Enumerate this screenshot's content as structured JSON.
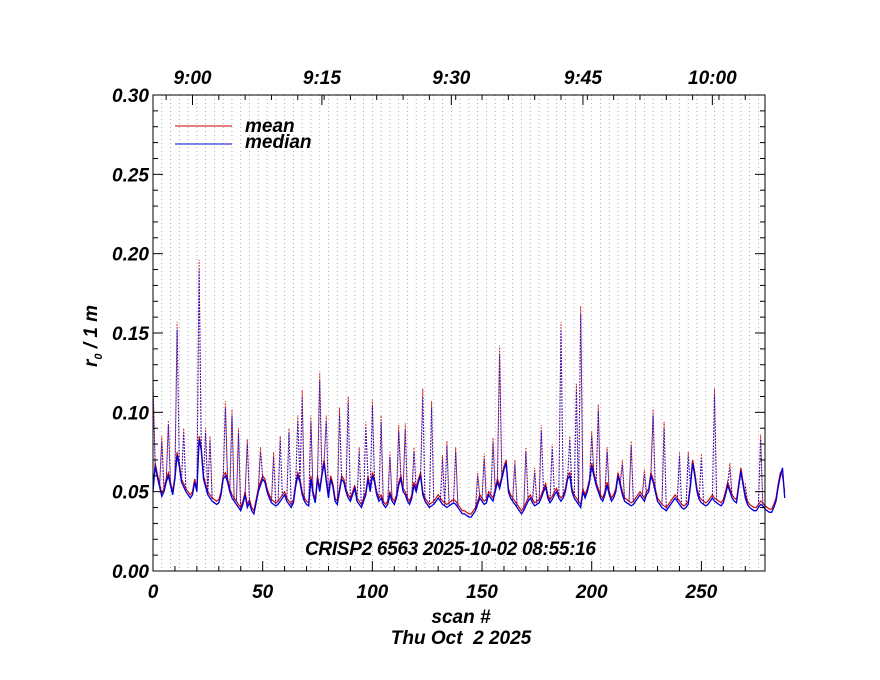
{
  "chart_data": {
    "type": "line",
    "title": "",
    "xlabel": "scan #",
    "date_label": "Thu Oct  2 2025",
    "ylabel": "r",
    "ylabel_sub": "0",
    "ylabel_unit": " / 1 m",
    "annotation": "CRISP2 6563 2025-10-02 08:55:16",
    "xlim": [
      0,
      279
    ],
    "ylim": [
      0.0,
      0.3
    ],
    "x_ticks": [
      0,
      50,
      100,
      150,
      200,
      250
    ],
    "x_tick_labels": [
      "0",
      "50",
      "100",
      "150",
      "200",
      "250"
    ],
    "y_ticks": [
      0.0,
      0.05,
      0.1,
      0.15,
      0.2,
      0.25,
      0.3
    ],
    "y_tick_labels": [
      "0.00",
      "0.05",
      "0.10",
      "0.15",
      "0.20",
      "0.25",
      "0.30"
    ],
    "top_axis": {
      "ticks": [
        18,
        77,
        136,
        196,
        255
      ],
      "labels": [
        "9:00",
        "9:15",
        "9:30",
        "9:45",
        "10:00"
      ]
    },
    "grid": {
      "vertical_dotted": true,
      "spacing": 4
    },
    "legend": {
      "position": "top-left"
    },
    "series": [
      {
        "name": "mean",
        "color": "#cc0000",
        "style": "solid",
        "values": [
          0.052,
          0.068,
          0.061,
          0.055,
          0.049,
          0.052,
          0.058,
          0.062,
          0.056,
          0.05,
          0.06,
          0.075,
          0.068,
          0.058,
          0.055,
          0.052,
          0.05,
          0.048,
          0.05,
          0.058,
          0.052,
          0.085,
          0.078,
          0.06,
          0.055,
          0.05,
          0.048,
          0.046,
          0.045,
          0.044,
          0.045,
          0.05,
          0.06,
          0.062,
          0.058,
          0.052,
          0.048,
          0.046,
          0.044,
          0.042,
          0.04,
          0.044,
          0.05,
          0.042,
          0.045,
          0.04,
          0.038,
          0.045,
          0.052,
          0.056,
          0.06,
          0.058,
          0.052,
          0.048,
          0.045,
          0.044,
          0.043,
          0.044,
          0.046,
          0.048,
          0.05,
          0.046,
          0.044,
          0.042,
          0.045,
          0.055,
          0.062,
          0.058,
          0.05,
          0.046,
          0.044,
          0.043,
          0.06,
          0.05,
          0.045,
          0.06,
          0.052,
          0.062,
          0.07,
          0.058,
          0.048,
          0.06,
          0.055,
          0.046,
          0.044,
          0.052,
          0.06,
          0.058,
          0.052,
          0.048,
          0.046,
          0.05,
          0.054,
          0.046,
          0.044,
          0.042,
          0.046,
          0.05,
          0.06,
          0.052,
          0.062,
          0.058,
          0.05,
          0.046,
          0.048,
          0.044,
          0.042,
          0.044,
          0.05,
          0.046,
          0.044,
          0.048,
          0.056,
          0.06,
          0.052,
          0.05,
          0.046,
          0.044,
          0.048,
          0.056,
          0.052,
          0.058,
          0.062,
          0.05,
          0.046,
          0.044,
          0.042,
          0.043,
          0.044,
          0.046,
          0.048,
          0.046,
          0.044,
          0.043,
          0.042,
          0.043,
          0.044,
          0.045,
          0.044,
          0.042,
          0.04,
          0.038,
          0.038,
          0.037,
          0.036,
          0.036,
          0.038,
          0.04,
          0.044,
          0.048,
          0.046,
          0.044,
          0.045,
          0.05,
          0.048,
          0.046,
          0.052,
          0.058,
          0.054,
          0.06,
          0.066,
          0.07,
          0.052,
          0.048,
          0.046,
          0.044,
          0.042,
          0.04,
          0.038,
          0.04,
          0.043,
          0.046,
          0.048,
          0.045,
          0.043,
          0.044,
          0.045,
          0.048,
          0.052,
          0.055,
          0.048,
          0.045,
          0.047,
          0.05,
          0.052,
          0.048,
          0.046,
          0.048,
          0.052,
          0.06,
          0.062,
          0.052,
          0.048,
          0.046,
          0.044,
          0.042,
          0.052,
          0.048,
          0.052,
          0.058,
          0.068,
          0.062,
          0.056,
          0.052,
          0.048,
          0.046,
          0.05,
          0.056,
          0.05,
          0.046,
          0.048,
          0.052,
          0.062,
          0.056,
          0.05,
          0.046,
          0.045,
          0.044,
          0.043,
          0.044,
          0.046,
          0.048,
          0.05,
          0.048,
          0.046,
          0.05,
          0.052,
          0.062,
          0.058,
          0.052,
          0.046,
          0.044,
          0.042,
          0.041,
          0.04,
          0.042,
          0.044,
          0.046,
          0.048,
          0.046,
          0.044,
          0.042,
          0.041,
          0.042,
          0.044,
          0.055,
          0.07,
          0.062,
          0.052,
          0.047,
          0.045,
          0.044,
          0.043,
          0.044,
          0.046,
          0.048,
          0.046,
          0.045,
          0.044,
          0.043,
          0.045,
          0.05,
          0.056,
          0.052,
          0.048,
          0.046,
          0.045,
          0.055,
          0.065,
          0.056,
          0.048,
          0.044,
          0.042,
          0.041,
          0.04,
          0.04,
          0.042,
          0.044,
          0.043,
          0.041,
          0.04,
          0.039,
          0.039,
          0.042,
          0.046,
          0.055,
          0.062,
          0.06,
          0.05
        ],
        "spikes": [
          [
            0,
            0.12
          ],
          [
            4,
            0.085
          ],
          [
            7,
            0.095
          ],
          [
            11,
            0.157
          ],
          [
            14,
            0.09
          ],
          [
            21,
            0.196
          ],
          [
            24,
            0.09
          ],
          [
            26,
            0.085
          ],
          [
            33,
            0.107
          ],
          [
            36,
            0.102
          ],
          [
            39,
            0.09
          ],
          [
            43,
            0.083
          ],
          [
            49,
            0.078
          ],
          [
            55,
            0.075
          ],
          [
            58,
            0.085
          ],
          [
            62,
            0.09
          ],
          [
            66,
            0.098
          ],
          [
            68,
            0.114
          ],
          [
            72,
            0.098
          ],
          [
            76,
            0.125
          ],
          [
            79,
            0.098
          ],
          [
            85,
            0.103
          ],
          [
            89,
            0.11
          ],
          [
            94,
            0.078
          ],
          [
            97,
            0.094
          ],
          [
            100,
            0.108
          ],
          [
            104,
            0.098
          ],
          [
            108,
            0.075
          ],
          [
            112,
            0.092
          ],
          [
            115,
            0.093
          ],
          [
            119,
            0.078
          ],
          [
            123,
            0.115
          ],
          [
            127,
            0.107
          ],
          [
            132,
            0.073
          ],
          [
            134,
            0.082
          ],
          [
            138,
            0.078
          ],
          [
            148,
            0.062
          ],
          [
            151,
            0.074
          ],
          [
            155,
            0.084
          ],
          [
            158,
            0.142
          ],
          [
            165,
            0.07
          ],
          [
            170,
            0.078
          ],
          [
            174,
            0.065
          ],
          [
            177,
            0.092
          ],
          [
            182,
            0.08
          ],
          [
            186,
            0.157
          ],
          [
            190,
            0.085
          ],
          [
            193,
            0.118
          ],
          [
            195,
            0.167
          ],
          [
            200,
            0.088
          ],
          [
            203,
            0.105
          ],
          [
            207,
            0.078
          ],
          [
            214,
            0.07
          ],
          [
            218,
            0.082
          ],
          [
            224,
            0.064
          ],
          [
            228,
            0.102
          ],
          [
            233,
            0.094
          ],
          [
            240,
            0.075
          ],
          [
            244,
            0.075
          ],
          [
            250,
            0.074
          ],
          [
            256,
            0.115
          ],
          [
            263,
            0.068
          ],
          [
            270,
            0.055
          ],
          [
            277,
            0.086
          ]
        ]
      },
      {
        "name": "median",
        "color": "#0000dd",
        "style": "solid",
        "values": [
          0.05,
          0.066,
          0.059,
          0.053,
          0.047,
          0.05,
          0.056,
          0.06,
          0.054,
          0.048,
          0.058,
          0.073,
          0.066,
          0.056,
          0.053,
          0.05,
          0.048,
          0.046,
          0.048,
          0.056,
          0.05,
          0.083,
          0.076,
          0.058,
          0.053,
          0.048,
          0.046,
          0.044,
          0.043,
          0.042,
          0.043,
          0.048,
          0.058,
          0.06,
          0.056,
          0.05,
          0.046,
          0.044,
          0.042,
          0.04,
          0.038,
          0.042,
          0.048,
          0.04,
          0.043,
          0.038,
          0.036,
          0.043,
          0.05,
          0.054,
          0.058,
          0.056,
          0.05,
          0.046,
          0.043,
          0.042,
          0.041,
          0.042,
          0.044,
          0.046,
          0.048,
          0.044,
          0.042,
          0.04,
          0.043,
          0.053,
          0.06,
          0.056,
          0.048,
          0.044,
          0.042,
          0.041,
          0.058,
          0.048,
          0.043,
          0.058,
          0.05,
          0.06,
          0.068,
          0.056,
          0.046,
          0.058,
          0.053,
          0.044,
          0.042,
          0.05,
          0.058,
          0.056,
          0.05,
          0.046,
          0.044,
          0.048,
          0.052,
          0.044,
          0.042,
          0.04,
          0.044,
          0.048,
          0.058,
          0.05,
          0.06,
          0.056,
          0.048,
          0.044,
          0.046,
          0.042,
          0.04,
          0.042,
          0.048,
          0.044,
          0.042,
          0.046,
          0.054,
          0.058,
          0.05,
          0.048,
          0.044,
          0.042,
          0.046,
          0.054,
          0.05,
          0.056,
          0.06,
          0.048,
          0.044,
          0.042,
          0.04,
          0.041,
          0.042,
          0.044,
          0.046,
          0.044,
          0.042,
          0.041,
          0.04,
          0.041,
          0.042,
          0.043,
          0.042,
          0.04,
          0.038,
          0.036,
          0.036,
          0.035,
          0.034,
          0.034,
          0.036,
          0.038,
          0.042,
          0.046,
          0.044,
          0.042,
          0.043,
          0.048,
          0.046,
          0.044,
          0.05,
          0.056,
          0.052,
          0.058,
          0.064,
          0.068,
          0.05,
          0.046,
          0.044,
          0.042,
          0.04,
          0.038,
          0.036,
          0.038,
          0.041,
          0.044,
          0.046,
          0.043,
          0.041,
          0.042,
          0.043,
          0.046,
          0.05,
          0.053,
          0.046,
          0.043,
          0.045,
          0.048,
          0.05,
          0.046,
          0.044,
          0.046,
          0.05,
          0.058,
          0.06,
          0.05,
          0.046,
          0.044,
          0.042,
          0.04,
          0.05,
          0.046,
          0.05,
          0.056,
          0.066,
          0.06,
          0.054,
          0.05,
          0.046,
          0.044,
          0.048,
          0.054,
          0.048,
          0.044,
          0.046,
          0.05,
          0.06,
          0.054,
          0.048,
          0.044,
          0.043,
          0.042,
          0.041,
          0.042,
          0.044,
          0.046,
          0.048,
          0.046,
          0.044,
          0.048,
          0.05,
          0.06,
          0.056,
          0.05,
          0.044,
          0.042,
          0.04,
          0.039,
          0.038,
          0.04,
          0.042,
          0.044,
          0.046,
          0.044,
          0.042,
          0.04,
          0.039,
          0.04,
          0.042,
          0.053,
          0.068,
          0.06,
          0.05,
          0.045,
          0.043,
          0.042,
          0.041,
          0.042,
          0.044,
          0.046,
          0.044,
          0.043,
          0.042,
          0.041,
          0.043,
          0.048,
          0.054,
          0.05,
          0.046,
          0.044,
          0.043,
          0.053,
          0.063,
          0.054,
          0.046,
          0.042,
          0.04,
          0.039,
          0.038,
          0.038,
          0.04,
          0.042,
          0.041,
          0.039,
          0.038,
          0.037,
          0.037,
          0.04,
          0.044,
          0.053,
          0.06,
          0.065,
          0.046
        ],
        "spikes": [
          [
            0,
            0.115
          ],
          [
            4,
            0.082
          ],
          [
            7,
            0.092
          ],
          [
            11,
            0.152
          ],
          [
            14,
            0.087
          ],
          [
            21,
            0.19
          ],
          [
            24,
            0.087
          ],
          [
            26,
            0.082
          ],
          [
            33,
            0.103
          ],
          [
            36,
            0.098
          ],
          [
            39,
            0.087
          ],
          [
            43,
            0.08
          ],
          [
            49,
            0.075
          ],
          [
            55,
            0.072
          ],
          [
            58,
            0.082
          ],
          [
            62,
            0.087
          ],
          [
            66,
            0.094
          ],
          [
            68,
            0.11
          ],
          [
            72,
            0.094
          ],
          [
            76,
            0.12
          ],
          [
            79,
            0.094
          ],
          [
            85,
            0.099
          ],
          [
            89,
            0.106
          ],
          [
            94,
            0.075
          ],
          [
            97,
            0.09
          ],
          [
            100,
            0.104
          ],
          [
            104,
            0.094
          ],
          [
            108,
            0.072
          ],
          [
            112,
            0.088
          ],
          [
            115,
            0.089
          ],
          [
            119,
            0.075
          ],
          [
            123,
            0.11
          ],
          [
            127,
            0.103
          ],
          [
            132,
            0.07
          ],
          [
            134,
            0.079
          ],
          [
            138,
            0.075
          ],
          [
            148,
            0.06
          ],
          [
            151,
            0.071
          ],
          [
            155,
            0.081
          ],
          [
            158,
            0.137
          ],
          [
            165,
            0.067
          ],
          [
            170,
            0.075
          ],
          [
            174,
            0.062
          ],
          [
            177,
            0.088
          ],
          [
            182,
            0.077
          ],
          [
            186,
            0.152
          ],
          [
            190,
            0.082
          ],
          [
            193,
            0.114
          ],
          [
            195,
            0.162
          ],
          [
            200,
            0.085
          ],
          [
            203,
            0.101
          ],
          [
            207,
            0.075
          ],
          [
            214,
            0.067
          ],
          [
            218,
            0.079
          ],
          [
            224,
            0.061
          ],
          [
            228,
            0.098
          ],
          [
            233,
            0.09
          ],
          [
            240,
            0.072
          ],
          [
            244,
            0.072
          ],
          [
            250,
            0.071
          ],
          [
            256,
            0.111
          ],
          [
            263,
            0.065
          ],
          [
            270,
            0.053
          ],
          [
            277,
            0.083
          ]
        ]
      }
    ]
  }
}
